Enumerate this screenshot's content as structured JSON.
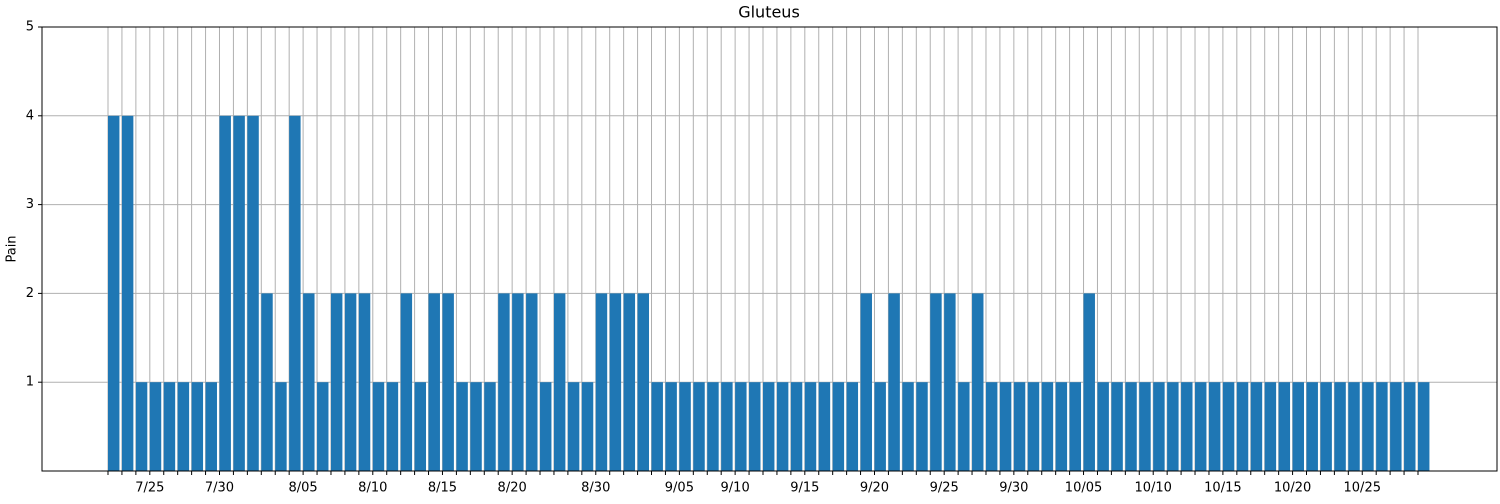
{
  "chart_data": {
    "type": "bar",
    "title": "Gluteus",
    "y_label": "Pain",
    "categories": [
      null,
      null,
      null,
      "7/25",
      null,
      null,
      null,
      null,
      "7/30",
      null,
      null,
      null,
      null,
      null,
      "8/05",
      null,
      null,
      null,
      null,
      "8/10",
      null,
      null,
      null,
      null,
      "8/15",
      null,
      null,
      null,
      null,
      "8/20",
      null,
      null,
      null,
      null,
      null,
      "8/30",
      null,
      null,
      null,
      null,
      null,
      "9/05",
      null,
      null,
      null,
      "9/10",
      null,
      null,
      null,
      null,
      "9/15",
      null,
      null,
      null,
      null,
      "9/20",
      null,
      null,
      null,
      null,
      "9/25",
      null,
      null,
      null,
      null,
      "9/30",
      null,
      null,
      null,
      null,
      "10/05",
      null,
      null,
      null,
      null,
      "10/10",
      null,
      null,
      null,
      null,
      "10/15",
      null,
      null,
      null,
      null,
      "10/20",
      null,
      null,
      null,
      null,
      "10/25",
      null,
      null,
      null,
      null
    ],
    "values": [
      4,
      4,
      1,
      1,
      1,
      1,
      1,
      1,
      4,
      4,
      4,
      2,
      1,
      4,
      2,
      1,
      2,
      2,
      2,
      1,
      1,
      2,
      1,
      2,
      2,
      1,
      1,
      1,
      2,
      2,
      2,
      1,
      2,
      1,
      1,
      2,
      2,
      2,
      2,
      1,
      1,
      1,
      1,
      1,
      1,
      1,
      1,
      1,
      1,
      1,
      1,
      1,
      1,
      1,
      2,
      1,
      2,
      1,
      1,
      2,
      2,
      1,
      2,
      1,
      1,
      1,
      1,
      1,
      1,
      1,
      2,
      1,
      1,
      1,
      1,
      1,
      1,
      1,
      1,
      1,
      1,
      1,
      1,
      1,
      1,
      1,
      1,
      1,
      1,
      1,
      1,
      1,
      1,
      1,
      1
    ],
    "color": "#1f77b4",
    "ylim": [
      0,
      5
    ],
    "yticks": [
      1,
      2,
      3,
      4,
      5
    ],
    "grid": true
  }
}
